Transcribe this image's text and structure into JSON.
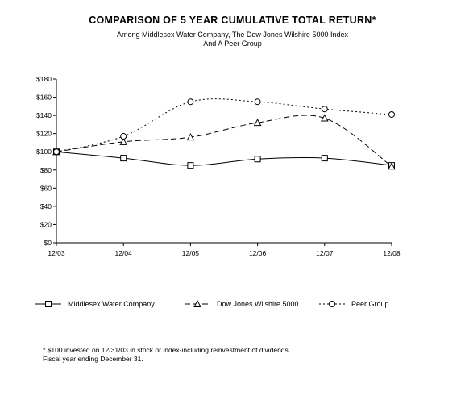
{
  "chart_data": {
    "type": "line",
    "title": "COMPARISON OF 5 YEAR CUMULATIVE TOTAL RETURN*",
    "subtitle_lines": [
      "Among Middlesex Water Company, The Dow Jones Wilshire 5000 Index",
      "And A Peer Group"
    ],
    "categories": [
      "12/03",
      "12/04",
      "12/05",
      "12/06",
      "12/07",
      "12/08"
    ],
    "y_ticks": [
      "$0",
      "$20",
      "$40",
      "$60",
      "$80",
      "$100",
      "$120",
      "$140",
      "$160",
      "$180"
    ],
    "ylim": [
      0,
      180
    ],
    "series": [
      {
        "name": "Middlesex Water Company",
        "marker": "square",
        "dash": "solid",
        "values": [
          100,
          93,
          85,
          92,
          93,
          85
        ]
      },
      {
        "name": "Dow Jones Wilshire 5000",
        "marker": "triangle",
        "dash": "dashed",
        "values": [
          100,
          111,
          116,
          132,
          137,
          84
        ]
      },
      {
        "name": "Peer Group",
        "marker": "circle",
        "dash": "dotted",
        "values": [
          100,
          117,
          155,
          155,
          147,
          141
        ]
      }
    ],
    "legend_position": "bottom",
    "grid": false
  },
  "footnotes": [
    "* $100 invested on 12/31/03 in stock or index-including reinvestment of dividends.",
    "Fiscal year ending December 31."
  ]
}
